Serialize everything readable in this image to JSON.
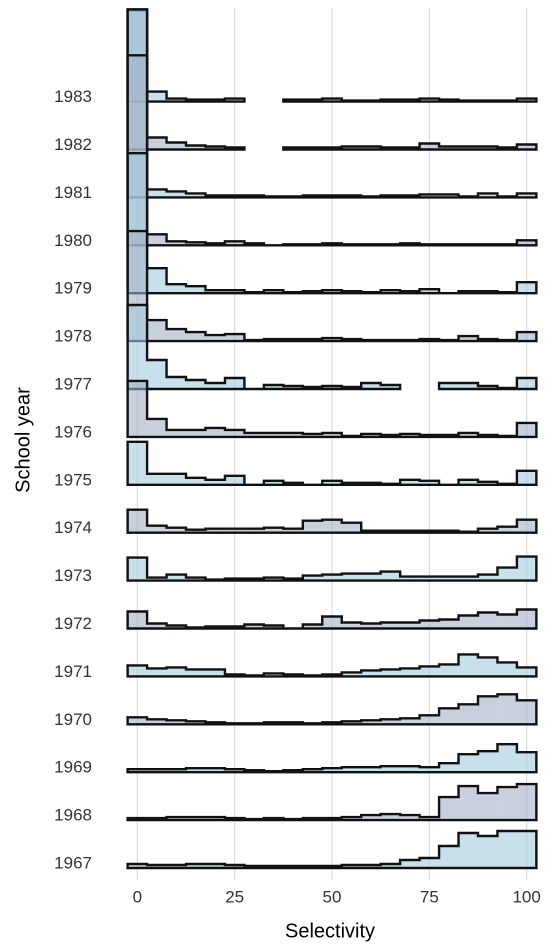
{
  "chart_data": {
    "type": "ridgeline-histogram",
    "x_label": "Selectivity",
    "y_label": "School year",
    "xlim": [
      -6,
      106
    ],
    "xticks": [
      0,
      25,
      50,
      75,
      100
    ],
    "grid": true,
    "bins": [
      -2.5,
      2.5,
      7.5,
      12.5,
      17.5,
      22.5,
      27.5,
      32.5,
      37.5,
      42.5,
      47.5,
      52.5,
      57.5,
      62.5,
      67.5,
      72.5,
      77.5,
      82.5,
      87.5,
      92.5,
      97.5,
      102.5
    ],
    "series": [
      {
        "name": "1967",
        "color": "#a3c9e0",
        "values": [
          4,
          3,
          3,
          4,
          4,
          3,
          2,
          2,
          2,
          2,
          2,
          3,
          3,
          4,
          8,
          10,
          22,
          35,
          32,
          37,
          37
        ]
      },
      {
        "name": "1968",
        "color": "#a3b0c6",
        "values": [
          2,
          2,
          3,
          3,
          3,
          2,
          1,
          2,
          1,
          2,
          2,
          3,
          5,
          6,
          5,
          3,
          23,
          34,
          27,
          33,
          36
        ]
      },
      {
        "name": "1969",
        "color": "#a3c9e0",
        "values": [
          3,
          3,
          3,
          4,
          4,
          3,
          2,
          1,
          2,
          3,
          4,
          5,
          5,
          6,
          6,
          5,
          9,
          18,
          21,
          28,
          20
        ]
      },
      {
        "name": "1970",
        "color": "#a3b0c6",
        "values": [
          7,
          5,
          4,
          3,
          2,
          1,
          1,
          2,
          2,
          1,
          2,
          3,
          4,
          5,
          6,
          9,
          16,
          20,
          28,
          30,
          24
        ]
      },
      {
        "name": "1971",
        "color": "#a3c9e0",
        "values": [
          11,
          8,
          9,
          7,
          7,
          2,
          1,
          3,
          2,
          1,
          2,
          4,
          6,
          7,
          8,
          10,
          12,
          22,
          19,
          14,
          9
        ]
      },
      {
        "name": "1972",
        "color": "#a3b0c6",
        "values": [
          17,
          5,
          3,
          1,
          2,
          2,
          4,
          3,
          0,
          4,
          12,
          6,
          5,
          6,
          6,
          8,
          9,
          13,
          16,
          14,
          19
        ]
      },
      {
        "name": "1973",
        "color": "#a3c9e0",
        "values": [
          23,
          3,
          6,
          3,
          1,
          2,
          2,
          3,
          2,
          5,
          6,
          7,
          7,
          9,
          4,
          4,
          4,
          4,
          6,
          13,
          24
        ]
      },
      {
        "name": "1974",
        "color": "#a3b0c6",
        "values": [
          23,
          7,
          5,
          3,
          4,
          4,
          4,
          5,
          4,
          12,
          13,
          10,
          2,
          2,
          2,
          2,
          2,
          1,
          4,
          6,
          13
        ]
      },
      {
        "name": "1975",
        "color": "#a3c9e0",
        "values": [
          43,
          11,
          11,
          7,
          5,
          9,
          0,
          4,
          2,
          0,
          4,
          2,
          2,
          1,
          5,
          4,
          0,
          5,
          3,
          1,
          14
        ]
      },
      {
        "name": "1976",
        "color": "#a3b0c6",
        "values": [
          56,
          18,
          7,
          7,
          9,
          7,
          4,
          4,
          4,
          3,
          4,
          1,
          3,
          2,
          3,
          2,
          2,
          4,
          2,
          1,
          14
        ]
      },
      {
        "name": "1977",
        "color": "#a3c9e0",
        "values": [
          84,
          29,
          12,
          9,
          6,
          11,
          0,
          4,
          3,
          2,
          3,
          2,
          6,
          4,
          null,
          null,
          6,
          6,
          3,
          1,
          11
        ]
      },
      {
        "name": "1978",
        "color": "#a3b0c6",
        "values": [
          110,
          21,
          12,
          9,
          6,
          7,
          1,
          2,
          2,
          2,
          3,
          2,
          1,
          1,
          1,
          2,
          1,
          5,
          2,
          1,
          9
        ]
      },
      {
        "name": "1979",
        "color": "#a3c9e0",
        "values": [
          140,
          25,
          9,
          7,
          3,
          3,
          1,
          3,
          1,
          2,
          3,
          2,
          1,
          3,
          2,
          4,
          0,
          2,
          2,
          1,
          11
        ]
      },
      {
        "name": "1980",
        "color": "#a3b0c6",
        "values": [
          190,
          11,
          4,
          3,
          2,
          4,
          2,
          0,
          1,
          1,
          2,
          1,
          1,
          1,
          2,
          1,
          1,
          1,
          1,
          1,
          5
        ]
      },
      {
        "name": "1981",
        "color": "#a3c9e0",
        "values": [
          188,
          8,
          6,
          4,
          2,
          2,
          2,
          1,
          1,
          2,
          2,
          2,
          1,
          2,
          2,
          3,
          3,
          1,
          4,
          1,
          4
        ]
      },
      {
        "name": "1982",
        "color": "#a3b0c6",
        "values": [
          140,
          12,
          7,
          4,
          3,
          2,
          null,
          null,
          2,
          2,
          2,
          3,
          3,
          2,
          2,
          6,
          3,
          3,
          3,
          2,
          5
        ]
      },
      {
        "name": "1983",
        "color": "#a3c9e0",
        "values": [
          91,
          10,
          3,
          2,
          2,
          3,
          null,
          null,
          2,
          2,
          3,
          1,
          1,
          2,
          2,
          3,
          2,
          1,
          1,
          1,
          3
        ]
      }
    ]
  }
}
